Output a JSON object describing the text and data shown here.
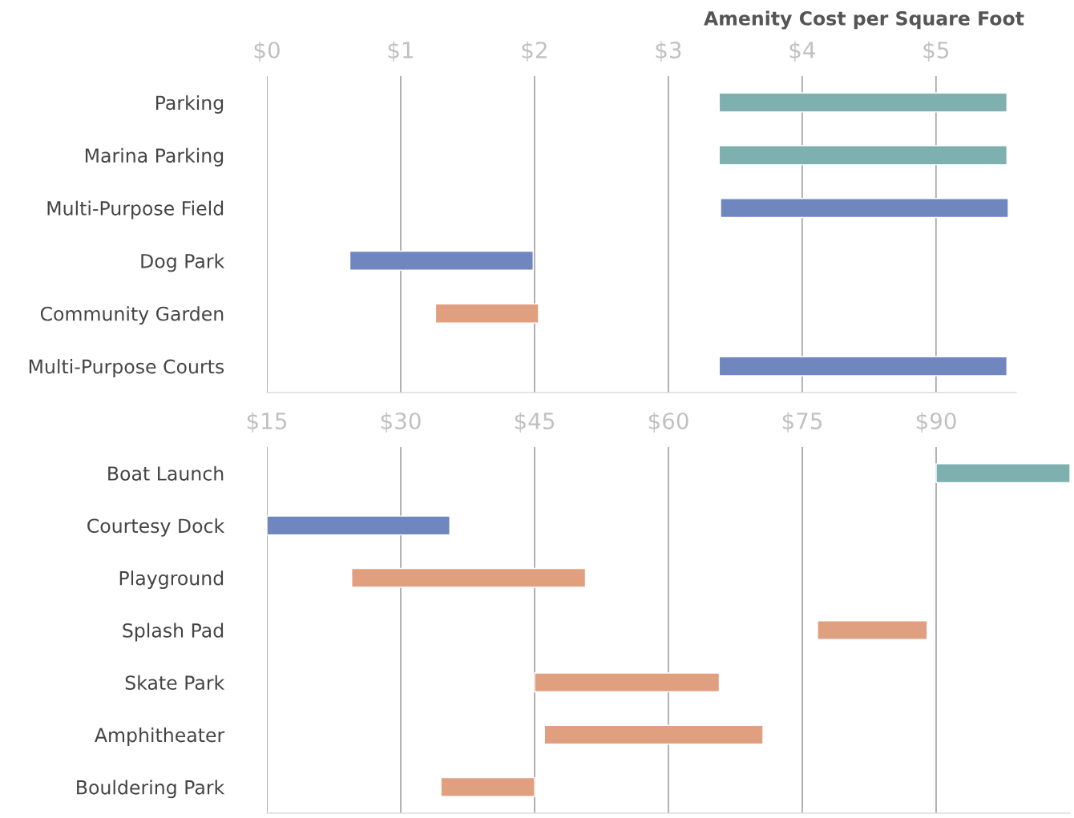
{
  "chart_data": [
    {
      "type": "bar",
      "title": "Amenity Cost per Square Foot",
      "orientation": "horizontal",
      "grid": "x",
      "legend": false,
      "categories": [
        "Parking",
        "Marina Parking",
        "Multi-Purpose Field",
        "Dog Park",
        "Community Garden",
        "Multi-Purpose Courts"
      ],
      "base": [
        3.38,
        3.38,
        3.39,
        0.62,
        1.26,
        3.38
      ],
      "values": [
        2.15,
        2.15,
        2.15,
        1.37,
        0.77,
        2.15
      ],
      "colors": [
        "#7fb0b0",
        "#7fb0b0",
        "#6f86bf",
        "#6f86bf",
        "#e0a07f",
        "#6f86bf"
      ],
      "xlim": [
        0,
        5.6
      ],
      "xticks": [
        {
          "value": 0,
          "label": "$0"
        },
        {
          "value": 1,
          "label": "$1"
        },
        {
          "value": 2,
          "label": "$2"
        },
        {
          "value": 3,
          "label": "$3"
        },
        {
          "value": 4,
          "label": "$4"
        },
        {
          "value": 5,
          "label": "$5"
        }
      ]
    },
    {
      "type": "bar",
      "orientation": "horizontal",
      "grid": "x",
      "legend": false,
      "categories": [
        "Boat Launch",
        "Courtesy Dock",
        "Playground",
        "Splash Pad",
        "Skate Park",
        "Amphitheater",
        "Bouldering Park"
      ],
      "base": [
        90,
        15,
        24.5,
        76.7,
        45,
        46.1,
        34.5
      ],
      "values": [
        15,
        20.5,
        26.2,
        12.3,
        20.7,
        24.5,
        10.5
      ],
      "colors": [
        "#7fb0b0",
        "#6f86bf",
        "#e0a07f",
        "#e0a07f",
        "#e0a07f",
        "#e0a07f",
        "#e0a07f"
      ],
      "xlim": [
        15,
        105
      ],
      "xticks": [
        {
          "value": 15,
          "label": "$15"
        },
        {
          "value": 30,
          "label": "$30"
        },
        {
          "value": 45,
          "label": "$45"
        },
        {
          "value": 60,
          "label": "$60"
        },
        {
          "value": 75,
          "label": "$75"
        },
        {
          "value": 90,
          "label": "$90"
        }
      ]
    }
  ]
}
